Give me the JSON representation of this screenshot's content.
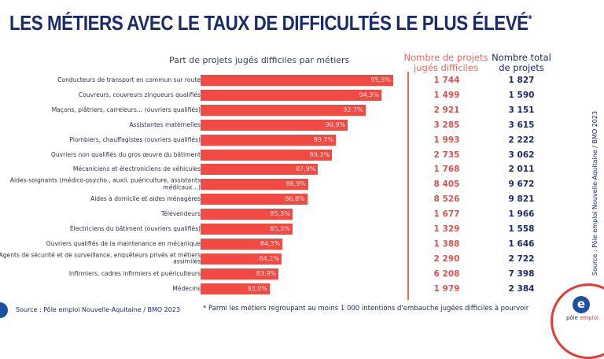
{
  "title": "LES MÉTIERS AVEC LE TAUX DE DIFFICULTÉS LE PLUS ÉLEVÉ",
  "title_mark": "*",
  "columns": {
    "difficult": "Nombre de projets jugés difficiles",
    "total": "Nombre total de projets"
  },
  "source": "Source : Pôle emploi Nouvelle-Aquitaine / BMO 2023",
  "vertical_source": "Source : Pôle emploi Nouvelle-Aquitaine / BMO 2023",
  "footnote": "* Parmi les métiers regroupant au moins 1 000 intentions d'embauche jugées difficiles à pourvoir",
  "logo": {
    "text_a": "pôle",
    "text_b": "emploi",
    "letter": "e"
  },
  "colors": {
    "bar": "#f24a43",
    "title": "#1b2a6b",
    "difficult": "#d9534f",
    "total": "#1b2a6b"
  },
  "chart_data": {
    "type": "bar",
    "orientation": "horizontal",
    "title": "Part de projets jugés difficiles par métiers",
    "categories": [
      "Conducteurs de transport en commun sur route",
      "Couvreurs, couvreurs zingueurs qualifiés",
      "Maçons, plâtriers, carreleurs… (ouvriers qualifiés)",
      "Assistantes maternelles",
      "Plombiers, chauffagistes (ouvriers qualifiés)",
      "Ouvriers non qualifiés du gros œuvre du bâtiment",
      "Mécaniciens et électroniciens de véhicules",
      "Aides-soignants (médico-psycho., auxil. puériculture, assistants médicaux…)",
      "Aides à domicile et aides ménagères",
      "Télévendeurs",
      "Électriciens du bâtiment (ouvriers qualifiés)",
      "Ouvriers qualifiés de la maintenance en mécanique",
      "Agents de sécurité et de surveillance, enquêteurs privés et métiers assimilés",
      "Infirmiers, cadres infirmiers et puériculteurs",
      "Médecins"
    ],
    "values": [
      95.5,
      94.3,
      92.7,
      90.9,
      89.7,
      89.3,
      87.9,
      86.9,
      86.8,
      85.3,
      85.3,
      84.3,
      84.2,
      83.9,
      83.0
    ],
    "value_labels": [
      "95,5%",
      "94,3%",
      "92,7%",
      "90,9%",
      "89,7%",
      "89,3%",
      "87,9%",
      "86,9%",
      "86,8%",
      "85,3%",
      "85,3%",
      "84,3%",
      "84,2%",
      "83,9%",
      "83,0%"
    ],
    "difficult_projects": [
      "1 744",
      "1 499",
      "2 921",
      "3 285",
      "1 993",
      "2 735",
      "1 768",
      "8 405",
      "8 526",
      "1 677",
      "1 329",
      "1 388",
      "2 290",
      "6 208",
      "1 979"
    ],
    "total_projects": [
      "1 827",
      "1 590",
      "3 151",
      "3 615",
      "2 222",
      "3 062",
      "2 011",
      "9 672",
      "9 821",
      "1 966",
      "1 558",
      "1 646",
      "2 722",
      "7 398",
      "2 384"
    ],
    "xlim": [
      76,
      96
    ],
    "grid": false,
    "legend": "none"
  }
}
